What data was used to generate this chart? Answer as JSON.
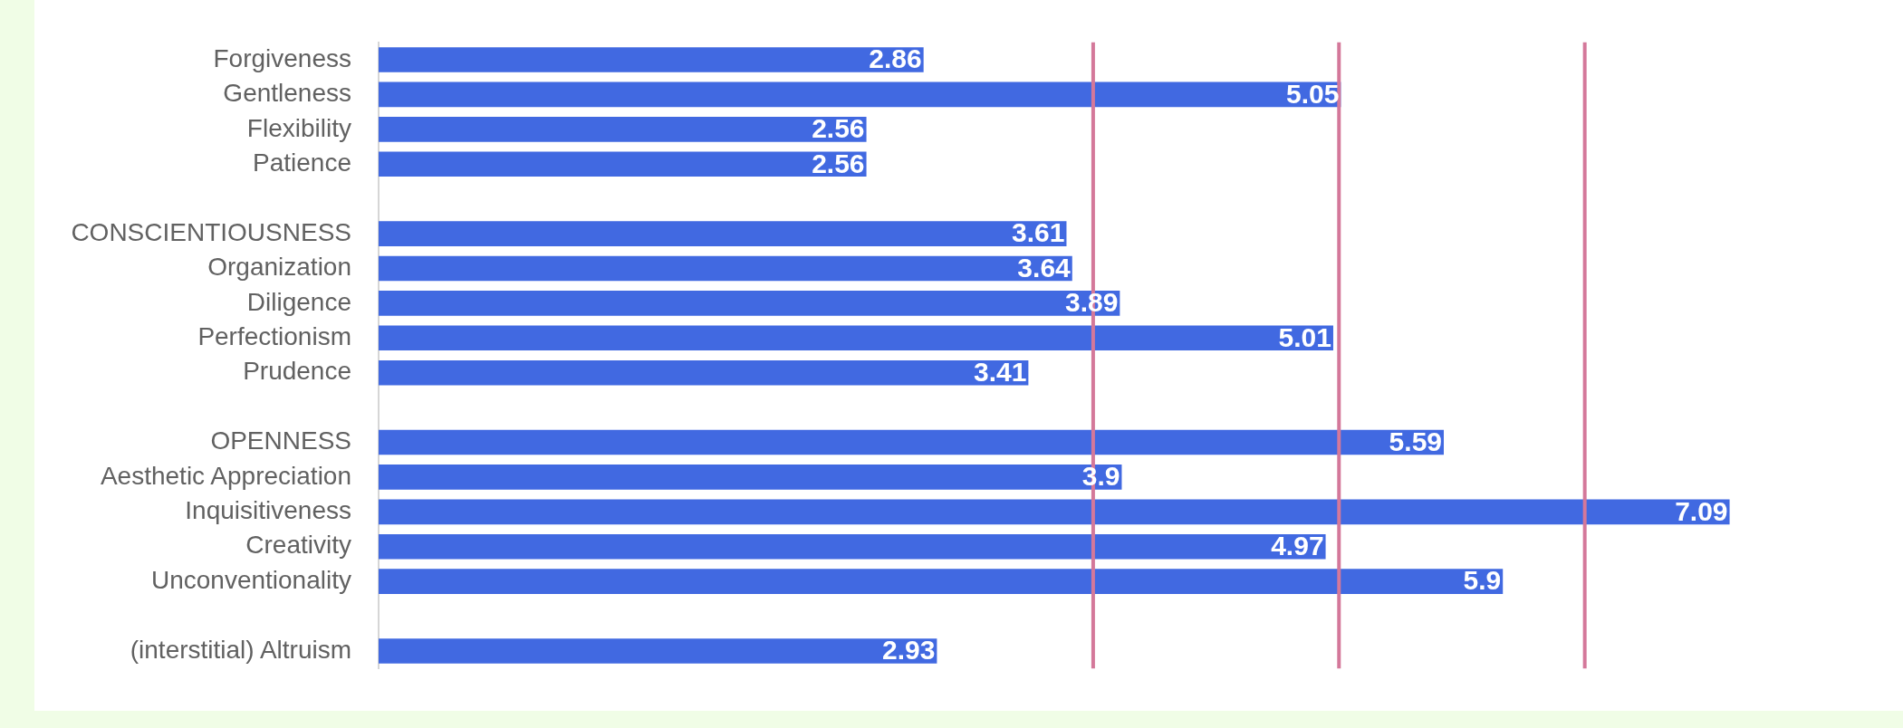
{
  "chart_data": {
    "type": "bar",
    "orientation": "horizontal",
    "categories": [
      "Forgiveness",
      "Gentleness",
      "Flexibility",
      "Patience",
      null,
      "CONSCIENTIOUSNESS",
      "Organization",
      "Diligence",
      "Perfectionism",
      "Prudence",
      null,
      "OPENNESS",
      "Aesthetic Appreciation",
      "Inquisitiveness",
      "Creativity",
      "Unconventionality",
      null,
      "(interstitial) Altruism"
    ],
    "values": [
      2.86,
      5.05,
      2.56,
      2.56,
      null,
      3.61,
      3.64,
      3.89,
      5.01,
      3.41,
      null,
      5.59,
      3.9,
      7.09,
      4.97,
      5.9,
      null,
      2.93
    ],
    "color": "#4169e1",
    "xlim": [
      0,
      8
    ],
    "ref_lines": [
      {
        "axis": "x",
        "value": 3.75,
        "color": "#d4789a"
      },
      {
        "axis": "x",
        "value": 5.04,
        "color": "#d4789a"
      },
      {
        "axis": "x",
        "value": 6.33,
        "color": "#d4789a"
      }
    ],
    "data_labels": true,
    "tick_labels": "y"
  }
}
